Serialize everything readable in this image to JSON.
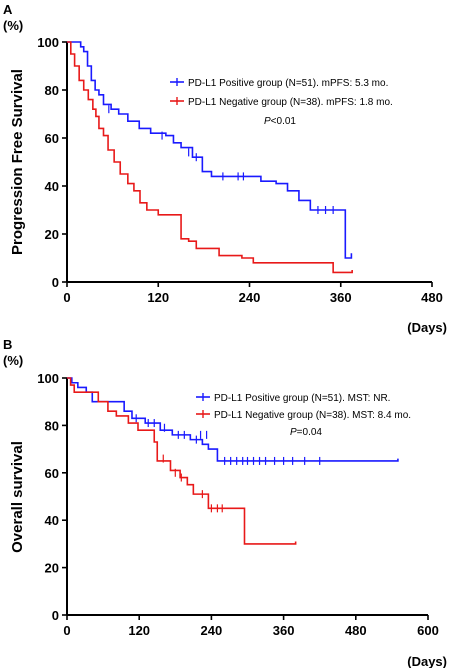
{
  "chart_data": [
    {
      "type": "line",
      "panel_label": "A",
      "y_unit": "(%)",
      "ylabel": "Progression Free Survival",
      "xlabel": "(Days)",
      "xlim": [
        0,
        480
      ],
      "ylim": [
        0,
        100
      ],
      "x_ticks": [
        0,
        120,
        240,
        360,
        480
      ],
      "y_ticks": [
        0,
        20,
        40,
        60,
        80,
        100
      ],
      "legend_position": "top-right",
      "annotation": {
        "prefix": "P",
        "text": "<0.01"
      },
      "series": [
        {
          "name": "PD-L1 Positive group (N=51). mPFS: 5.3 mo.",
          "color": "#1a1aff",
          "steps": [
            [
              0,
              100
            ],
            [
              12,
              100
            ],
            [
              18,
              98
            ],
            [
              22,
              96
            ],
            [
              27,
              90
            ],
            [
              32,
              84
            ],
            [
              37,
              80
            ],
            [
              42,
              78
            ],
            [
              48,
              74
            ],
            [
              58,
              72
            ],
            [
              68,
              70
            ],
            [
              80,
              67
            ],
            [
              95,
              64
            ],
            [
              110,
              62
            ],
            [
              130,
              61
            ],
            [
              140,
              58
            ],
            [
              150,
              56
            ],
            [
              165,
              52
            ],
            [
              178,
              46
            ],
            [
              190,
              44
            ],
            [
              245,
              44
            ],
            [
              255,
              42
            ],
            [
              275,
              41
            ],
            [
              290,
              38
            ],
            [
              305,
              34
            ],
            [
              320,
              30
            ],
            [
              362,
              30
            ],
            [
              366,
              10
            ],
            [
              372,
              10
            ],
            [
              374,
              12
            ]
          ],
          "censors": [
            [
              55,
              72
            ],
            [
              125,
              61
            ],
            [
              160,
              54
            ],
            [
              170,
              52
            ],
            [
              205,
              44
            ],
            [
              225,
              44
            ],
            [
              232,
              44
            ],
            [
              330,
              30
            ],
            [
              340,
              30
            ],
            [
              350,
              30
            ]
          ]
        },
        {
          "name": "PD-L1 Negative group (N=38). mPFS: 1.8 mo.",
          "color": "#e81919",
          "steps": [
            [
              0,
              100
            ],
            [
              5,
              95
            ],
            [
              10,
              90
            ],
            [
              16,
              84
            ],
            [
              22,
              80
            ],
            [
              28,
              76
            ],
            [
              34,
              72
            ],
            [
              38,
              69
            ],
            [
              42,
              64
            ],
            [
              48,
              61
            ],
            [
              54,
              55
            ],
            [
              62,
              50
            ],
            [
              70,
              45
            ],
            [
              80,
              41
            ],
            [
              88,
              38
            ],
            [
              96,
              33
            ],
            [
              105,
              30
            ],
            [
              120,
              28
            ],
            [
              140,
              28
            ],
            [
              150,
              18
            ],
            [
              160,
              17
            ],
            [
              170,
              14
            ],
            [
              200,
              11
            ],
            [
              230,
              10
            ],
            [
              245,
              8
            ],
            [
              345,
              8
            ],
            [
              350,
              4
            ],
            [
              370,
              4
            ],
            [
              375,
              5
            ]
          ],
          "censors": []
        }
      ]
    },
    {
      "type": "line",
      "panel_label": "B",
      "y_unit": "(%)",
      "ylabel": "Overall survival",
      "xlabel": "(Days)",
      "xlim": [
        0,
        600
      ],
      "ylim": [
        0,
        100
      ],
      "x_ticks": [
        0,
        120,
        240,
        360,
        480,
        600
      ],
      "y_ticks": [
        0,
        20,
        40,
        60,
        80,
        100
      ],
      "legend_position": "top-right",
      "annotation": {
        "prefix": "P",
        "text": "=0.04"
      },
      "series": [
        {
          "name": "PD-L1 Positive group (N=51). MST: NR.",
          "color": "#1a1aff",
          "steps": [
            [
              0,
              100
            ],
            [
              8,
              98
            ],
            [
              18,
              96
            ],
            [
              32,
              94
            ],
            [
              42,
              90
            ],
            [
              95,
              86
            ],
            [
              108,
              83
            ],
            [
              130,
              81
            ],
            [
              155,
              78
            ],
            [
              175,
              76
            ],
            [
              205,
              74
            ],
            [
              225,
              72
            ],
            [
              235,
              70
            ],
            [
              250,
              65
            ],
            [
              548,
              65
            ],
            [
              550,
              66
            ]
          ],
          "censors": [
            [
              115,
              83
            ],
            [
              135,
              81
            ],
            [
              145,
              81
            ],
            [
              162,
              79
            ],
            [
              185,
              76
            ],
            [
              195,
              76
            ],
            [
              215,
              74
            ],
            [
              222,
              76
            ],
            [
              232,
              76
            ],
            [
              262,
              65
            ],
            [
              272,
              65
            ],
            [
              282,
              65
            ],
            [
              292,
              65
            ],
            [
              300,
              65
            ],
            [
              310,
              65
            ],
            [
              320,
              65
            ],
            [
              330,
              65
            ],
            [
              345,
              65
            ],
            [
              360,
              65
            ],
            [
              375,
              65
            ],
            [
              395,
              65
            ],
            [
              420,
              65
            ]
          ]
        },
        {
          "name": "PD-L1 Negative group (N=38). MST: 8.4 mo.",
          "color": "#e81919",
          "steps": [
            [
              0,
              100
            ],
            [
              6,
              97
            ],
            [
              12,
              94
            ],
            [
              52,
              90
            ],
            [
              68,
              86
            ],
            [
              82,
              84
            ],
            [
              102,
              81
            ],
            [
              118,
              78
            ],
            [
              145,
              73
            ],
            [
              150,
              65
            ],
            [
              172,
              61
            ],
            [
              188,
              58
            ],
            [
              200,
              55
            ],
            [
              210,
              51
            ],
            [
              235,
              45
            ],
            [
              262,
              45
            ],
            [
              295,
              30
            ],
            [
              378,
              30
            ],
            [
              380,
              31
            ]
          ],
          "censors": [
            [
              160,
              66
            ],
            [
              180,
              60
            ],
            [
              190,
              58
            ],
            [
              225,
              51
            ],
            [
              240,
              45
            ],
            [
              250,
              45
            ],
            [
              258,
              45
            ]
          ]
        }
      ]
    }
  ]
}
